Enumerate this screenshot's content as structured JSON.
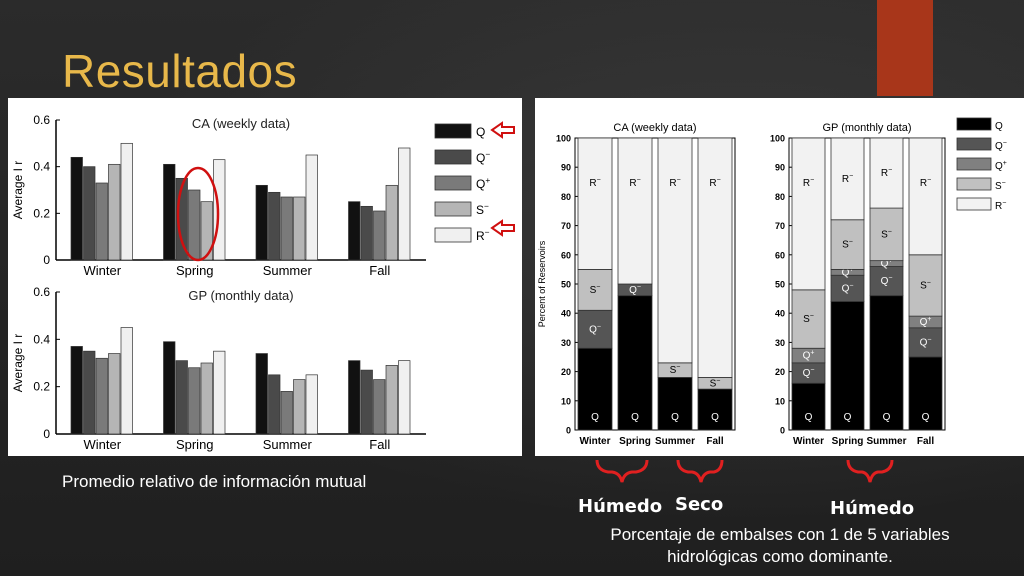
{
  "slide": {
    "title": "Resultados",
    "caption_left": "Promedio relativo de información mutual",
    "caption_right": "Porcentaje de embalses con 1 de 5 variables hidrológicas como dominante.",
    "season_labels": {
      "wet1": "Húmedo",
      "dry": "Seco",
      "wet2": "Húmedo"
    },
    "colors": {
      "title": "#e8b84a",
      "accent": "#a8361a",
      "bracket": "#e02020"
    }
  },
  "chart_data": [
    {
      "type": "bar",
      "title": "CA (weekly data)",
      "ylabel": "Average  I r",
      "categories": [
        "Winter",
        "Spring",
        "Summer",
        "Fall"
      ],
      "ylim": [
        0,
        0.6
      ],
      "yticks": [
        "0",
        "0.2",
        "0.4",
        "0.6"
      ],
      "series": [
        {
          "name": "Q",
          "color": "#111111",
          "values": [
            0.44,
            0.41,
            0.32,
            0.25
          ]
        },
        {
          "name": "Q-",
          "color": "#4a4a4a",
          "values": [
            0.4,
            0.35,
            0.29,
            0.23
          ]
        },
        {
          "name": "Q+",
          "color": "#7a7a7a",
          "values": [
            0.33,
            0.3,
            0.27,
            0.21
          ]
        },
        {
          "name": "S-",
          "color": "#b5b5b5",
          "values": [
            0.41,
            0.25,
            0.27,
            0.32
          ]
        },
        {
          "name": "R-",
          "color": "#f0f0f0",
          "values": [
            0.5,
            0.43,
            0.45,
            0.48
          ]
        }
      ]
    },
    {
      "type": "bar",
      "title": "GP (monthly data)",
      "ylabel": "Average  I r",
      "categories": [
        "Winter",
        "Spring",
        "Summer",
        "Fall"
      ],
      "ylim": [
        0,
        0.6
      ],
      "yticks": [
        "0",
        "0.2",
        "0.4",
        "0.6"
      ],
      "series": [
        {
          "name": "Q",
          "color": "#111111",
          "values": [
            0.37,
            0.39,
            0.34,
            0.31
          ]
        },
        {
          "name": "Q-",
          "color": "#4a4a4a",
          "values": [
            0.35,
            0.31,
            0.25,
            0.27
          ]
        },
        {
          "name": "Q+",
          "color": "#7a7a7a",
          "values": [
            0.32,
            0.28,
            0.18,
            0.23
          ]
        },
        {
          "name": "S-",
          "color": "#b5b5b5",
          "values": [
            0.34,
            0.3,
            0.23,
            0.29
          ]
        },
        {
          "name": "R-",
          "color": "#f0f0f0",
          "values": [
            0.45,
            0.35,
            0.25,
            0.31
          ]
        }
      ]
    },
    {
      "type": "bar",
      "stacked": true,
      "title": "CA (weekly data)",
      "ylabel": "Percent of Reservoirs",
      "categories": [
        "Winter",
        "Spring",
        "Summer",
        "Fall"
      ],
      "ylim": [
        0,
        100
      ],
      "yticks": [
        "0",
        "10",
        "20",
        "30",
        "40",
        "50",
        "60",
        "70",
        "80",
        "90",
        "100"
      ],
      "series": [
        {
          "name": "Q",
          "color": "#000000",
          "values": [
            28,
            46,
            18,
            14
          ]
        },
        {
          "name": "Q-",
          "color": "#555555",
          "values": [
            13,
            4,
            0,
            0
          ]
        },
        {
          "name": "Q+",
          "color": "#808080",
          "values": [
            0,
            0,
            0,
            0
          ]
        },
        {
          "name": "S-",
          "color": "#c0c0c0",
          "values": [
            14,
            0,
            5,
            4
          ]
        },
        {
          "name": "R-",
          "color": "#f2f2f2",
          "values": [
            45,
            50,
            77,
            82
          ]
        }
      ]
    },
    {
      "type": "bar",
      "stacked": true,
      "title": "GP (monthly data)",
      "categories": [
        "Winter",
        "Spring",
        "Summer",
        "Fall"
      ],
      "ylim": [
        0,
        100
      ],
      "yticks": [
        "0",
        "10",
        "20",
        "30",
        "40",
        "50",
        "60",
        "70",
        "80",
        "90",
        "100"
      ],
      "legend": [
        "Q",
        "Q-",
        "Q+",
        "S-",
        "R-"
      ],
      "series": [
        {
          "name": "Q",
          "color": "#000000",
          "values": [
            16,
            44,
            46,
            25
          ]
        },
        {
          "name": "Q-",
          "color": "#555555",
          "values": [
            7,
            9,
            10,
            10
          ]
        },
        {
          "name": "Q+",
          "color": "#808080",
          "values": [
            5,
            2,
            2,
            4
          ]
        },
        {
          "name": "S-",
          "color": "#c0c0c0",
          "values": [
            20,
            17,
            18,
            21
          ]
        },
        {
          "name": "R-",
          "color": "#f2f2f2",
          "values": [
            52,
            28,
            24,
            40
          ]
        }
      ]
    }
  ]
}
